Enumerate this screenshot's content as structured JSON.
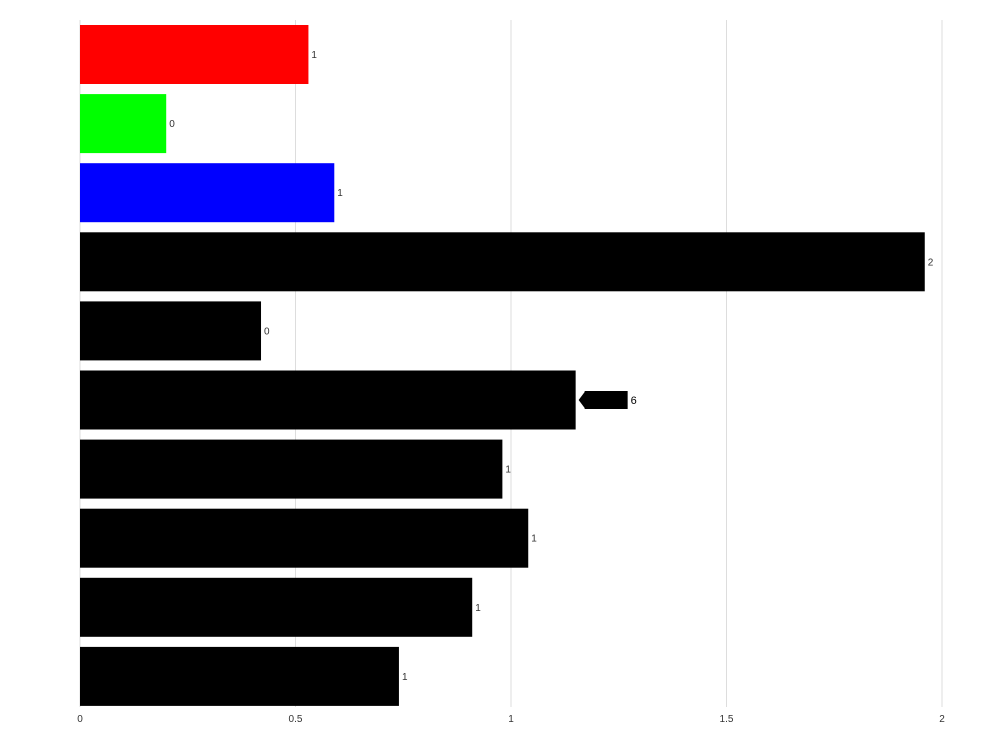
{
  "chart_data": {
    "type": "bar",
    "orientation": "horizontal",
    "title": "",
    "xlabel": "",
    "ylabel": "",
    "xlim": [
      0,
      2
    ],
    "x_ticks": [
      {
        "value": 0,
        "label": "0"
      },
      {
        "value": 0.5,
        "label": "0.5"
      },
      {
        "value": 1,
        "label": "1"
      },
      {
        "value": 1.5,
        "label": "1.5"
      },
      {
        "value": 2,
        "label": "2"
      }
    ],
    "grid": "vertical",
    "legend": "none",
    "bars": [
      {
        "value": 0.53,
        "label": "1",
        "color": "#ff0000"
      },
      {
        "value": 0.2,
        "label": "0",
        "color": "#00ff00"
      },
      {
        "value": 0.59,
        "label": "1",
        "color": "#0000ff"
      },
      {
        "value": 1.96,
        "label": "2",
        "color": "#000000"
      },
      {
        "value": 0.42,
        "label": "0",
        "color": "#000000"
      },
      {
        "value": 1.15,
        "label": "6",
        "color": "#000000",
        "callout": true
      },
      {
        "value": 0.98,
        "label": "1",
        "color": "#000000"
      },
      {
        "value": 1.04,
        "label": "1",
        "color": "#000000"
      },
      {
        "value": 0.91,
        "label": "1",
        "color": "#000000"
      },
      {
        "value": 0.74,
        "label": "1",
        "color": "#000000"
      }
    ]
  }
}
